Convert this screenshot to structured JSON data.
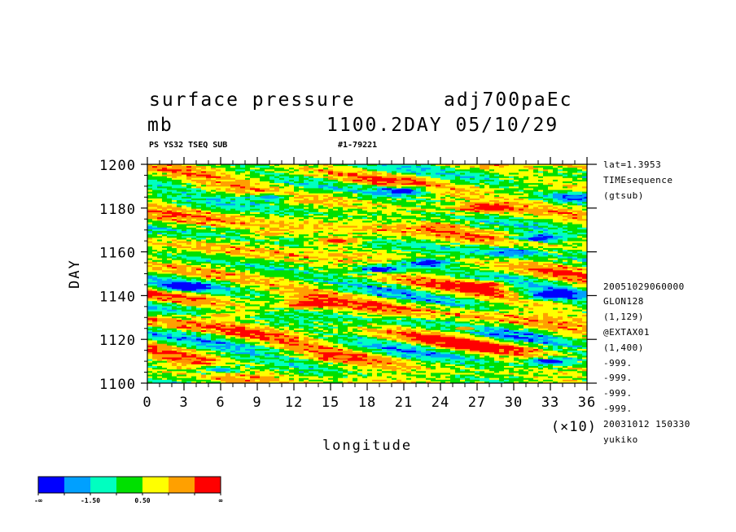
{
  "header": {
    "variable": "surface pressure",
    "experiment": "adj700paEc",
    "unit": "mb",
    "time_label": "1100.2DAY 05/10/29",
    "sub_left": "PS YS32 TSEQ SUB",
    "sub_right": "#1-79221"
  },
  "side_info": {
    "top": [
      "lat=1.3953",
      "TIMEsequence",
      "(gtsub)"
    ],
    "bottom": [
      "20051029060000",
      "GLON128",
      "(1,129)",
      "@EXTAX01",
      "(1,400)",
      "-999.",
      "-999.",
      "-999.",
      "-999.",
      "20031012 150330",
      "yukiko"
    ]
  },
  "chart_data": {
    "type": "heatmap",
    "xlabel": "longitude",
    "xscale_note": "(×10)",
    "ylabel": "DAY",
    "xlim": [
      0,
      36
    ],
    "ylim": [
      1100,
      1200
    ],
    "x_ticks": [
      "0",
      "3",
      "6",
      "9",
      "12",
      "15",
      "18",
      "21",
      "24",
      "27",
      "30",
      "33",
      "36"
    ],
    "y_ticks": [
      "1100",
      "1120",
      "1140",
      "1160",
      "1180",
      "1200"
    ],
    "colorbar": {
      "colors": [
        "#0000ff",
        "#00a0ff",
        "#00ffc0",
        "#00e000",
        "#ffff00",
        "#ffa000",
        "#ff0000"
      ],
      "labels": [
        "-∞",
        "-1.50",
        "0.50",
        "∞"
      ]
    },
    "features": [
      {
        "x": 13.0,
        "y": 1136,
        "level": 6
      },
      {
        "x": 15.5,
        "y": 1165,
        "level": 6
      },
      {
        "x": 28.0,
        "y": 1145,
        "level": 6
      },
      {
        "x": 27.5,
        "y": 1180,
        "level": 6
      },
      {
        "x": 10.0,
        "y": 1168,
        "level": 5
      },
      {
        "x": 6.0,
        "y": 1131,
        "level": 5
      },
      {
        "x": 26.0,
        "y": 1125,
        "level": 5
      },
      {
        "x": 21.0,
        "y": 1192,
        "level": 5
      },
      {
        "x": 3.0,
        "y": 1110,
        "level": 5
      },
      {
        "x": 16.0,
        "y": 1112,
        "level": 5
      },
      {
        "x": 24.0,
        "y": 1172,
        "level": 5
      },
      {
        "x": 19.0,
        "y": 1152,
        "level": 0
      },
      {
        "x": 23.0,
        "y": 1155,
        "level": 0
      },
      {
        "x": 33.0,
        "y": 1140,
        "level": 0
      },
      {
        "x": 32.0,
        "y": 1166,
        "level": 0
      },
      {
        "x": 21.0,
        "y": 1188,
        "level": 0
      },
      {
        "x": 33.0,
        "y": 1110,
        "level": 0
      },
      {
        "x": 3.0,
        "y": 1144,
        "level": 0
      },
      {
        "x": 6.0,
        "y": 1106,
        "level": 1
      },
      {
        "x": 10.0,
        "y": 1185,
        "level": 1
      },
      {
        "x": 35.0,
        "y": 1185,
        "level": 1
      },
      {
        "x": 30.0,
        "y": 1160,
        "level": 1
      }
    ]
  }
}
